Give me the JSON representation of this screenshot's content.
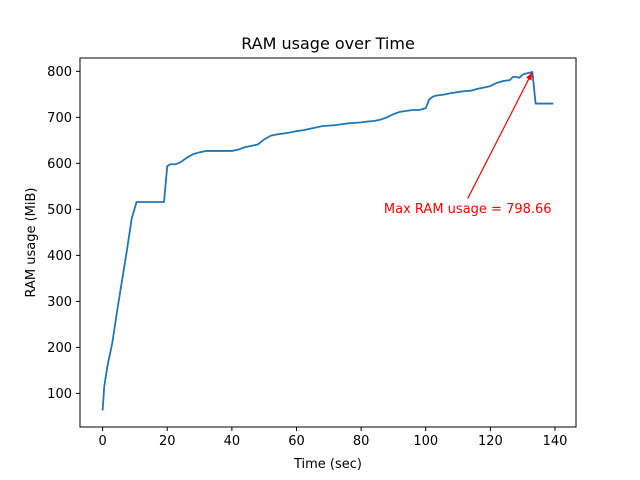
{
  "chart_data": {
    "type": "line",
    "title": "RAM usage over Time",
    "xlabel": "Time (sec)",
    "ylabel": "RAM usage (MiB)",
    "xlim": [
      -7,
      146.5
    ],
    "ylim": [
      27,
      829
    ],
    "xticks": [
      0,
      20,
      40,
      60,
      80,
      100,
      120,
      140
    ],
    "yticks": [
      100,
      200,
      300,
      400,
      500,
      600,
      700,
      800
    ],
    "grid": false,
    "legend": "none",
    "series_color": "#1f77b4",
    "series": [
      {
        "x": [
          0,
          0.5,
          1.5,
          3,
          4.5,
          6,
          7.5,
          9,
          10.5,
          12,
          14,
          16,
          18,
          19,
          20,
          21,
          22.5,
          24,
          26,
          28,
          30,
          32,
          34,
          36,
          38,
          40,
          42,
          44,
          46,
          48,
          50,
          52,
          54,
          56,
          58,
          60,
          62,
          64,
          66,
          68,
          70,
          72,
          74,
          76,
          78,
          80,
          82,
          84,
          86,
          88,
          90,
          92,
          94,
          96,
          98,
          100,
          101,
          102,
          103,
          104,
          106,
          108,
          110,
          112,
          114,
          116,
          118,
          120,
          122,
          124,
          126,
          127,
          128,
          129,
          130,
          131,
          132,
          133,
          134,
          135,
          136,
          138,
          139.5
        ],
        "y": [
          63,
          115,
          160,
          210,
          280,
          345,
          410,
          480,
          516,
          516,
          516,
          516,
          516,
          516,
          594,
          598,
          598,
          602,
          612,
          620,
          624,
          627,
          627,
          627,
          627,
          627,
          630,
          635,
          638,
          641,
          652,
          660,
          663,
          665,
          667,
          670,
          672,
          675,
          678,
          681,
          682,
          683,
          685,
          687,
          688,
          689,
          691,
          692,
          695,
          700,
          707,
          712,
          714,
          716,
          716,
          720,
          738,
          744,
          747,
          748,
          750,
          753,
          755,
          757,
          758,
          762,
          765,
          768,
          775,
          779,
          781,
          788,
          788,
          786,
          793,
          795,
          797,
          798.66,
          730,
          730,
          730,
          730,
          730
        ]
      }
    ],
    "annotation": {
      "text": "Max RAM usage = 798.66",
      "color": "#ff0000",
      "text_x": 113,
      "text_y": 502,
      "point_x": 133,
      "point_y": 798.66
    }
  }
}
